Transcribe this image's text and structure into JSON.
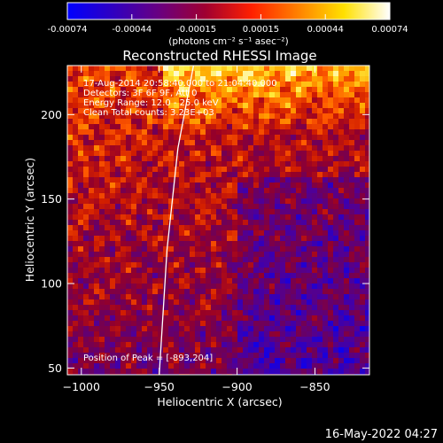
{
  "colorbar": {
    "tick_labels": [
      "-0.00074",
      "-0.00044",
      "-0.00015",
      "0.00015",
      "0.00044",
      "0.00074"
    ],
    "unit_label": "(photons cm⁻² s⁻¹ asec⁻²)",
    "colors": [
      "#0000ff",
      "#3000c0",
      "#6a0080",
      "#a00030",
      "#ff2000",
      "#ff8000",
      "#ffe000",
      "#ffffff"
    ]
  },
  "chart_data": {
    "type": "heatmap",
    "title": "Reconstructed RHESSI Image",
    "xlabel": "Heliocentric X (arcsec)",
    "ylabel": "Heliocentric Y (arcsec)",
    "xlim": [
      -1009,
      -815
    ],
    "ylim": [
      46,
      229
    ],
    "x_ticks": [
      -1000,
      -950,
      -900,
      -850
    ],
    "y_ticks": [
      50,
      100,
      150,
      200
    ],
    "x_tick_labels": [
      "−1000",
      "−950",
      "−900",
      "−850"
    ],
    "y_tick_labels": [
      "50",
      "100",
      "150",
      "200"
    ],
    "value_range": [
      -0.00074,
      0.00074
    ],
    "annotations": [
      "17-Aug-2014 20:58:40.000 to 21:04:40.000",
      "Detectors: 3F 6F 9F, Att 0",
      "Energy Range: 12.0 - 25.0 keV",
      "Clean     Total counts: 3.23E+03",
      "Position of Peak = [-893,204]"
    ],
    "limb_curve": [
      [
        -950,
        46
      ],
      [
        -945,
        120
      ],
      [
        -938,
        180
      ],
      [
        -928,
        229
      ]
    ]
  },
  "footer": {
    "date": "16-May-2022 04:27"
  }
}
